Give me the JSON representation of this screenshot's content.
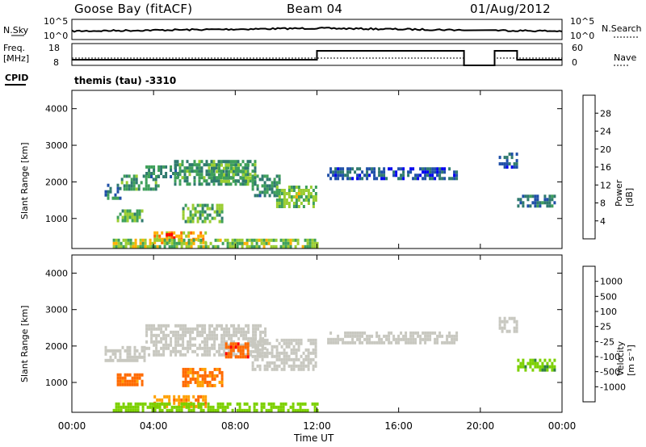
{
  "header": {
    "station": "Goose Bay (fitACF)",
    "beam": "Beam 04",
    "date": "01/Aug/2012"
  },
  "noise_panel": {
    "left_label": "N.Sky",
    "left_ticks": [
      "10^5",
      "10^0"
    ],
    "right_ticks": [
      "10^5",
      "10^0"
    ],
    "right_label": "N.Search"
  },
  "freq_panel": {
    "left_label_1": "Freq.",
    "left_label_2": "[MHz]",
    "left_ticks": [
      "18",
      "8"
    ],
    "right_ticks": [
      "60",
      "0"
    ],
    "right_label": "Nave"
  },
  "cpid": {
    "label": "CPID",
    "value": "themis (tau) -3310"
  },
  "chart_data": [
    {
      "type": "heatmap",
      "title": "",
      "ylabel": "Slant Range [km]",
      "xlabel": "",
      "xlim_hours": [
        0,
        24
      ],
      "ylim": [
        180,
        4500
      ],
      "yticks": [
        "4000",
        "3000",
        "2000",
        "1000"
      ],
      "colorbar": {
        "label": "Power [dB]",
        "ticks": [
          "28",
          "24",
          "20",
          "16",
          "12",
          "8",
          "4"
        ],
        "range": [
          0,
          30
        ],
        "colors": [
          "#0000ee",
          "#1f4fa8",
          "#2f7a6e",
          "#3fa05a",
          "#9acd32",
          "#ffb000",
          "#ff6a00",
          "#ff0000"
        ]
      },
      "regions": [
        {
          "t0": 1.6,
          "t1": 2.4,
          "r0": 1550,
          "r1": 1950,
          "level": 8
        },
        {
          "t0": 2.2,
          "t1": 3.4,
          "r0": 900,
          "r1": 1250,
          "level": 14
        },
        {
          "t0": 2.4,
          "t1": 4.2,
          "r0": 1800,
          "r1": 2200,
          "level": 12
        },
        {
          "t0": 3.6,
          "t1": 5.2,
          "r0": 2100,
          "r1": 2450,
          "level": 10
        },
        {
          "t0": 4.0,
          "t1": 6.5,
          "r0": 300,
          "r1": 650,
          "level": 20
        },
        {
          "t0": 4.6,
          "t1": 5.0,
          "r0": 450,
          "r1": 600,
          "level": 27
        },
        {
          "t0": 5.4,
          "t1": 7.4,
          "r0": 900,
          "r1": 1400,
          "level": 14
        },
        {
          "t0": 5.0,
          "t1": 9.0,
          "r0": 1900,
          "r1": 2600,
          "level": 12
        },
        {
          "t0": 6.8,
          "t1": 8.8,
          "r0": 2000,
          "r1": 2500,
          "level": 14
        },
        {
          "t0": 8.8,
          "t1": 10.2,
          "r0": 1600,
          "r1": 2200,
          "level": 11
        },
        {
          "t0": 10.0,
          "t1": 12.0,
          "r0": 1350,
          "r1": 1900,
          "level": 15
        },
        {
          "t0": 12.5,
          "t1": 18.8,
          "r0": 2100,
          "r1": 2400,
          "level": 6
        },
        {
          "t0": 20.9,
          "t1": 21.8,
          "r0": 2400,
          "r1": 2800,
          "level": 7
        },
        {
          "t0": 21.8,
          "t1": 23.6,
          "r0": 1300,
          "r1": 1650,
          "level": 9
        },
        {
          "t0": 2.0,
          "t1": 12.0,
          "r0": 200,
          "r1": 450,
          "level": 16
        }
      ]
    },
    {
      "type": "heatmap",
      "title": "",
      "ylabel": "Slant Range [km]",
      "xlabel": "Time UT",
      "xlim_hours": [
        0,
        24
      ],
      "ylim": [
        180,
        4500
      ],
      "yticks": [
        "4000",
        "3000",
        "2000",
        "1000"
      ],
      "xticks": [
        "00:00",
        "04:00",
        "08:00",
        "12:00",
        "16:00",
        "20:00",
        "00:00"
      ],
      "colorbar": {
        "label": "Velocity [m s⁻¹]",
        "ticks": [
          "1000",
          "500",
          "100",
          "25",
          "-25",
          "-100",
          "-500",
          "-1000"
        ],
        "range": [
          -1200,
          1200
        ],
        "colors": [
          "#ff0000",
          "#ff6a00",
          "#ffa000",
          "#c8c8c0",
          "#c8c8c0",
          "#7cd000",
          "#2f8040",
          "#1f4fa8",
          "#0000ee"
        ]
      },
      "regions": [
        {
          "t0": 1.6,
          "t1": 3.6,
          "r0": 1600,
          "r1": 2000,
          "level": 0
        },
        {
          "t0": 3.6,
          "t1": 9.5,
          "r0": 1800,
          "r1": 2600,
          "level": 0
        },
        {
          "t0": 8.8,
          "t1": 12.0,
          "r0": 1400,
          "r1": 2200,
          "level": 0
        },
        {
          "t0": 2.2,
          "t1": 3.4,
          "r0": 900,
          "r1": 1250,
          "level": -150
        },
        {
          "t0": 7.5,
          "t1": 8.6,
          "r0": 1700,
          "r1": 2100,
          "level": -400
        },
        {
          "t0": 5.4,
          "t1": 7.4,
          "r0": 900,
          "r1": 1400,
          "level": -120
        },
        {
          "t0": 4.0,
          "t1": 6.5,
          "r0": 300,
          "r1": 650,
          "level": -80
        },
        {
          "t0": 12.5,
          "t1": 18.8,
          "r0": 2100,
          "r1": 2400,
          "level": 0
        },
        {
          "t0": 20.9,
          "t1": 21.8,
          "r0": 2400,
          "r1": 2800,
          "level": 0
        },
        {
          "t0": 21.8,
          "t1": 23.6,
          "r0": 1300,
          "r1": 1650,
          "level": 80
        },
        {
          "t0": 2.0,
          "t1": 12.0,
          "r0": 200,
          "r1": 450,
          "level": 60
        }
      ]
    }
  ]
}
